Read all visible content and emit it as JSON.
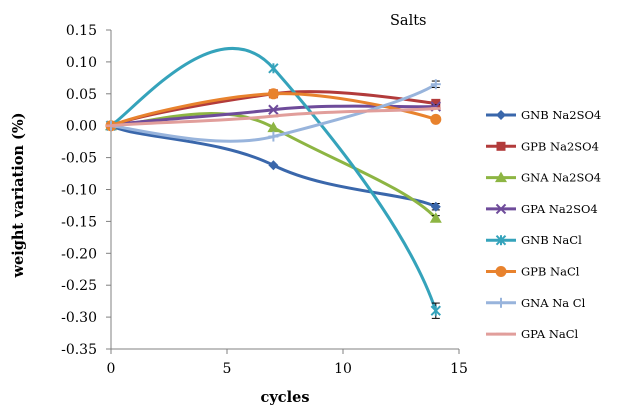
{
  "chart_data": {
    "type": "line",
    "title": "",
    "annotation": "Salts",
    "xlabel": "cycles",
    "ylabel": "weight variation (%)",
    "xlim": [
      0,
      15
    ],
    "ylim": [
      -0.35,
      0.15
    ],
    "xticks": [
      "0",
      "5",
      "10",
      "15"
    ],
    "yticks": [
      "0.15",
      "0.10",
      "0.05",
      "0.00",
      "-0.05",
      "-0.10",
      "-0.15",
      "-0.20",
      "-0.25",
      "-0.30",
      "-0.35"
    ],
    "grid": false,
    "legend_position": "right",
    "series": [
      {
        "name": "GNB Na2SO4",
        "color": "#3a67ab",
        "marker": "diamond",
        "x": [
          0,
          7,
          14
        ],
        "y": [
          0.0,
          -0.062,
          -0.127
        ],
        "error": [
          0,
          0,
          0.005
        ]
      },
      {
        "name": "GPB  Na2SO4",
        "color": "#b23b3b",
        "marker": "square",
        "x": [
          0,
          7,
          14
        ],
        "y": [
          0.0,
          0.05,
          0.035
        ],
        "error": [
          0,
          0,
          0.004
        ]
      },
      {
        "name": "GNA  Na2SO4",
        "color": "#8db543",
        "marker": "triangle",
        "x": [
          0,
          7,
          14
        ],
        "y": [
          0.0,
          -0.003,
          -0.145
        ],
        "error": [
          0,
          0,
          0.004
        ]
      },
      {
        "name": "GPA Na2SO4",
        "color": "#6e4b9a",
        "marker": "x",
        "x": [
          0,
          7,
          14
        ],
        "y": [
          0.0,
          0.025,
          0.03
        ],
        "error": [
          0,
          0,
          0.003
        ]
      },
      {
        "name": "GNB NaCl",
        "color": "#35a3bb",
        "marker": "asterisk",
        "x": [
          0,
          7,
          14
        ],
        "y": [
          0.0,
          0.09,
          -0.29
        ],
        "error": [
          0,
          0,
          0.012
        ]
      },
      {
        "name": "GPB  NaCl",
        "color": "#e8822d",
        "marker": "circle",
        "x": [
          0,
          7,
          14
        ],
        "y": [
          0.0,
          0.05,
          0.01
        ],
        "error": [
          0,
          0,
          0.0
        ]
      },
      {
        "name": "GNA Na Cl",
        "color": "#98b4dc",
        "marker": "plus",
        "x": [
          0,
          7,
          14
        ],
        "y": [
          0.0,
          -0.017,
          0.065
        ],
        "error": [
          0,
          0,
          0.005
        ]
      },
      {
        "name": "GPA NaCl",
        "color": "#e19e9b",
        "marker": "dash",
        "x": [
          0,
          7,
          14
        ],
        "y": [
          0.0,
          0.015,
          0.027
        ],
        "error": [
          0,
          0,
          0.0
        ]
      }
    ]
  }
}
